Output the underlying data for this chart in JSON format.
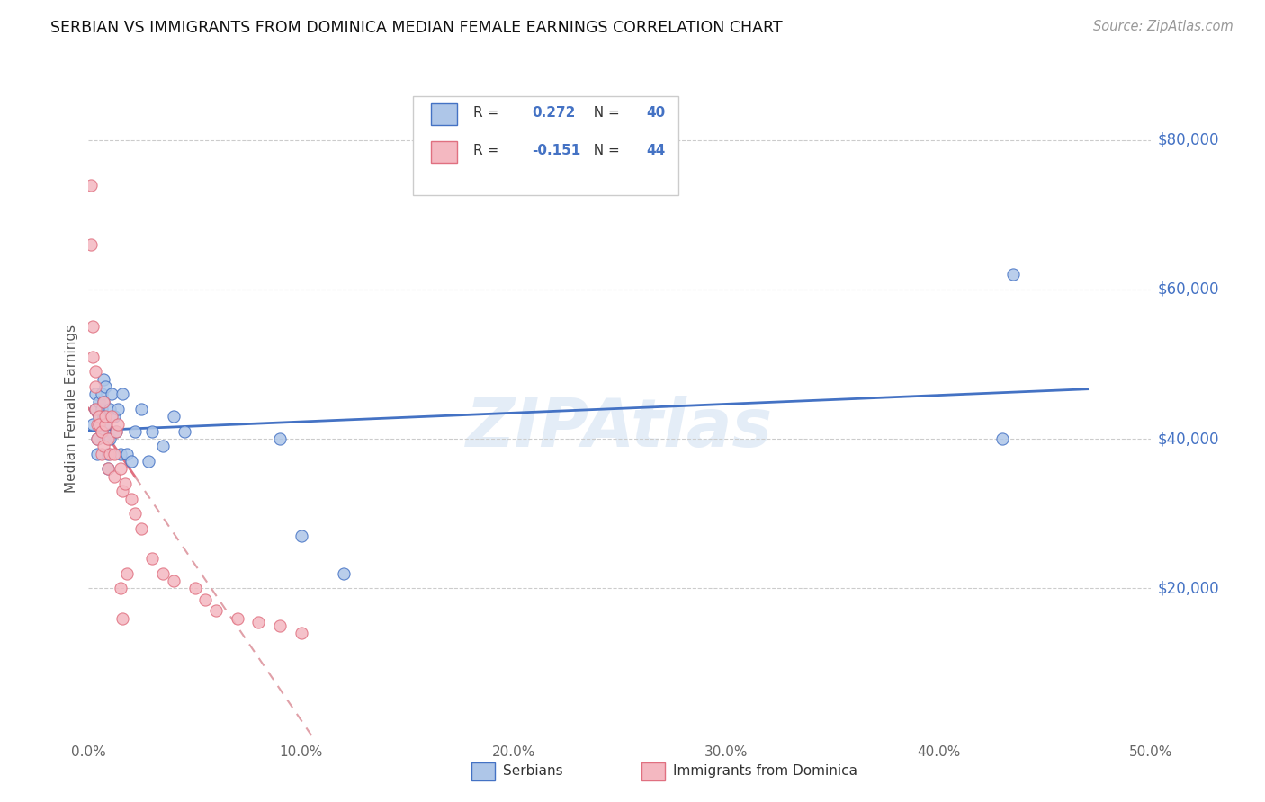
{
  "title": "SERBIAN VS IMMIGRANTS FROM DOMINICA MEDIAN FEMALE EARNINGS CORRELATION CHART",
  "source": "Source: ZipAtlas.com",
  "ylabel": "Median Female Earnings",
  "y_tick_labels": [
    "$20,000",
    "$40,000",
    "$60,000",
    "$80,000"
  ],
  "y_tick_values": [
    20000,
    40000,
    60000,
    80000
  ],
  "legend_label1": "Serbians",
  "legend_label2": "Immigrants from Dominica",
  "r1": 0.272,
  "n1": 40,
  "r2": -0.151,
  "n2": 44,
  "color_serbian": "#aec6e8",
  "color_dominica": "#f4b8c1",
  "color_serbian_line": "#4472c4",
  "color_dominica_line_solid": "#e07080",
  "color_dominica_line_dashed": "#e0a0a8",
  "watermark": "ZIPAtlas",
  "xlim": [
    0.0,
    0.5
  ],
  "ylim": [
    0,
    88000
  ],
  "serbian_x": [
    0.002,
    0.003,
    0.003,
    0.004,
    0.004,
    0.005,
    0.005,
    0.005,
    0.006,
    0.006,
    0.006,
    0.007,
    0.007,
    0.007,
    0.008,
    0.008,
    0.009,
    0.009,
    0.01,
    0.01,
    0.011,
    0.012,
    0.013,
    0.014,
    0.015,
    0.016,
    0.018,
    0.02,
    0.022,
    0.025,
    0.028,
    0.03,
    0.035,
    0.04,
    0.045,
    0.09,
    0.1,
    0.12,
    0.43,
    0.435
  ],
  "serbian_y": [
    42000,
    44000,
    46000,
    38000,
    40000,
    43000,
    45000,
    42000,
    41000,
    44000,
    46000,
    43000,
    45000,
    48000,
    42000,
    47000,
    36000,
    38000,
    40000,
    44000,
    46000,
    43000,
    41000,
    44000,
    38000,
    46000,
    38000,
    37000,
    41000,
    44000,
    37000,
    41000,
    39000,
    43000,
    41000,
    40000,
    27000,
    22000,
    40000,
    62000
  ],
  "dominica_x": [
    0.001,
    0.001,
    0.002,
    0.002,
    0.003,
    0.003,
    0.003,
    0.004,
    0.004,
    0.005,
    0.005,
    0.006,
    0.006,
    0.007,
    0.007,
    0.008,
    0.008,
    0.009,
    0.009,
    0.01,
    0.011,
    0.012,
    0.012,
    0.013,
    0.014,
    0.015,
    0.016,
    0.017,
    0.02,
    0.022,
    0.025,
    0.03,
    0.035,
    0.04,
    0.05,
    0.055,
    0.06,
    0.07,
    0.08,
    0.09,
    0.1,
    0.015,
    0.016,
    0.018
  ],
  "dominica_y": [
    74000,
    66000,
    55000,
    51000,
    49000,
    47000,
    44000,
    42000,
    40000,
    43000,
    42000,
    41000,
    38000,
    39000,
    45000,
    42000,
    43000,
    40000,
    36000,
    38000,
    43000,
    38000,
    35000,
    41000,
    42000,
    36000,
    33000,
    34000,
    32000,
    30000,
    28000,
    24000,
    22000,
    21000,
    20000,
    18500,
    17000,
    16000,
    15500,
    15000,
    14000,
    20000,
    16000,
    22000
  ]
}
